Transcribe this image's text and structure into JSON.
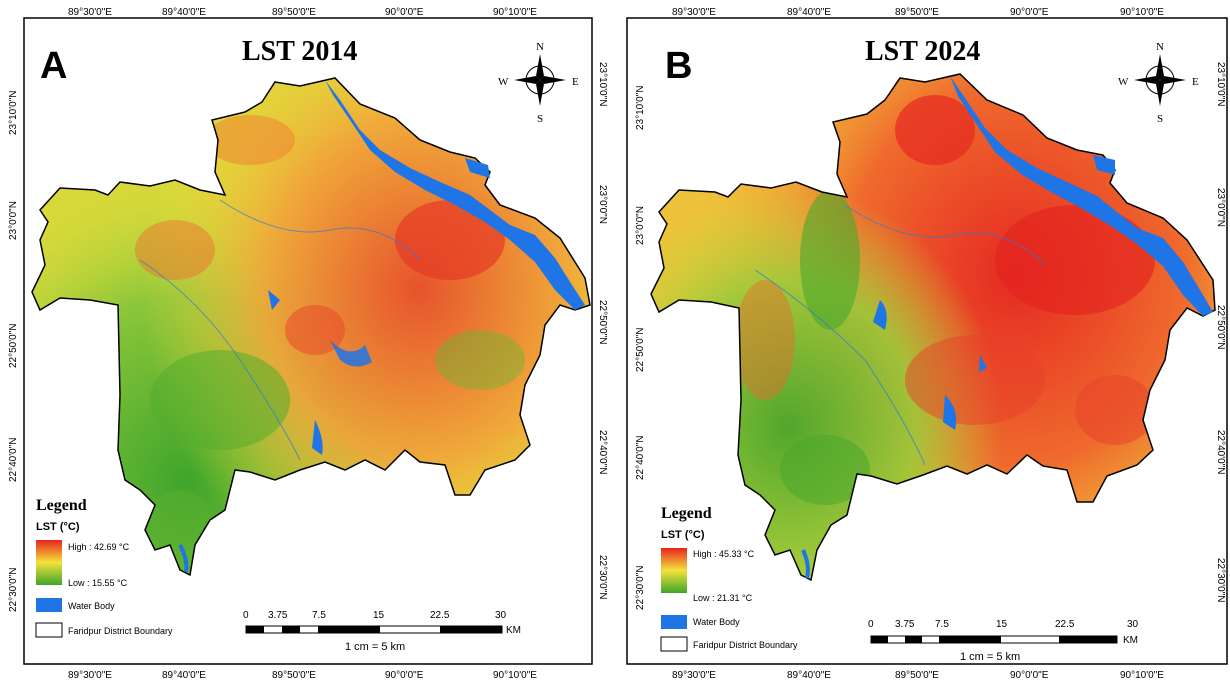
{
  "common": {
    "lon_labels": [
      "89°30'0\"E",
      "89°40'0\"E",
      "89°50'0\"E",
      "90°0'0\"E",
      "90°10'0\"E"
    ],
    "lat_labels": [
      "23°10'0\"N",
      "23°0'0\"N",
      "22°50'0\"N",
      "22°40'0\"N",
      "22°30'0\"N"
    ],
    "compass": {
      "n": "N",
      "s": "S",
      "e": "E",
      "w": "W"
    },
    "legend_title": "Legend",
    "legend_subtitle": "LST (°C)",
    "water_label": "Water Body",
    "boundary_label": "Faridpur District Boundary",
    "scale_ticks": [
      "0",
      "3.75",
      "7.5",
      "15",
      "22.5",
      "30"
    ],
    "scale_unit": "KM",
    "scale_ratio": "1 cm = 5 km",
    "colors": {
      "high": "#e8231e",
      "mid": "#f3e23a",
      "low": "#3fa52b",
      "water": "#1f74e6",
      "frame": "#000000"
    }
  },
  "panels": [
    {
      "letter": "A",
      "title": "LST 2014",
      "high_label": "High : 42.69 °C",
      "low_label": "Low : 15.55 °C",
      "heat_level": 0.45
    },
    {
      "letter": "B",
      "title": "LST 2024",
      "high_label": "High : 45.33 °C",
      "low_label": "Low : 21.31 °C",
      "heat_level": 0.75
    }
  ]
}
